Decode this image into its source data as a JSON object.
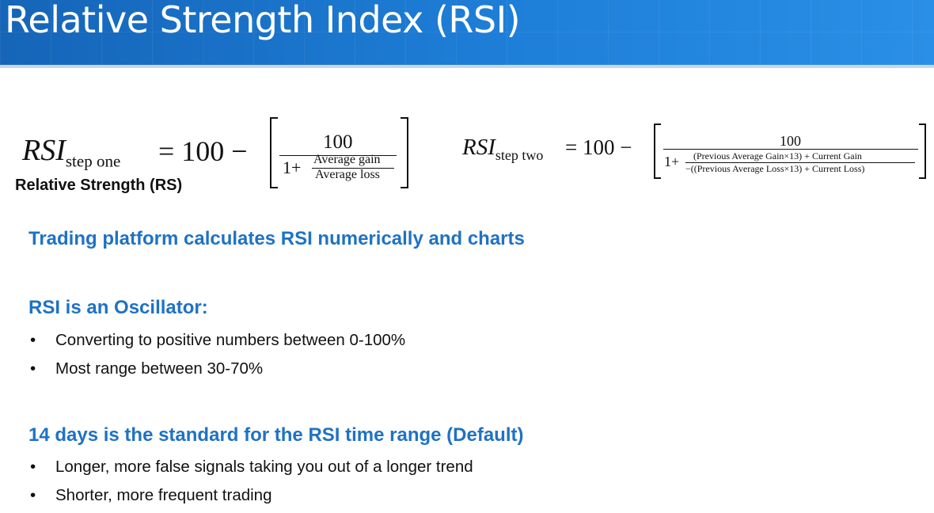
{
  "slide": {
    "title": "Relative Strength Index (RSI)",
    "formula_one": {
      "lhs": "RSI",
      "subscript": "step one",
      "equals": "= 100 −",
      "numerator": "100",
      "one_plus": "1+",
      "gain": "Average gain",
      "loss": "Average loss"
    },
    "formula_two": {
      "lhs": "RSI",
      "subscript": "step two",
      "equals": "= 100 −",
      "numerator": "100",
      "one_plus": "1+",
      "gain": "(Previous Average Gain×13) + Current Gain",
      "loss": "−((Previous Average Loss×13) + Current Loss)"
    },
    "rs_label": "Relative Strength (RS)",
    "heading1": "Trading platform calculates RSI numerically and charts",
    "heading2": "RSI is an Oscillator:",
    "oscillator_bullets": [
      "Converting to positive numbers between 0-100%",
      "Most range between 30-70%"
    ],
    "heading3": "14 days is the standard for the RSI time range (Default)",
    "range_bullets": [
      "Longer, more false signals taking you out of a longer trend",
      "Shorter, more frequent trading"
    ],
    "bullet_char": "•",
    "colors": {
      "title_bar": "#1e7fd8",
      "heading": "#1f72c4"
    }
  }
}
